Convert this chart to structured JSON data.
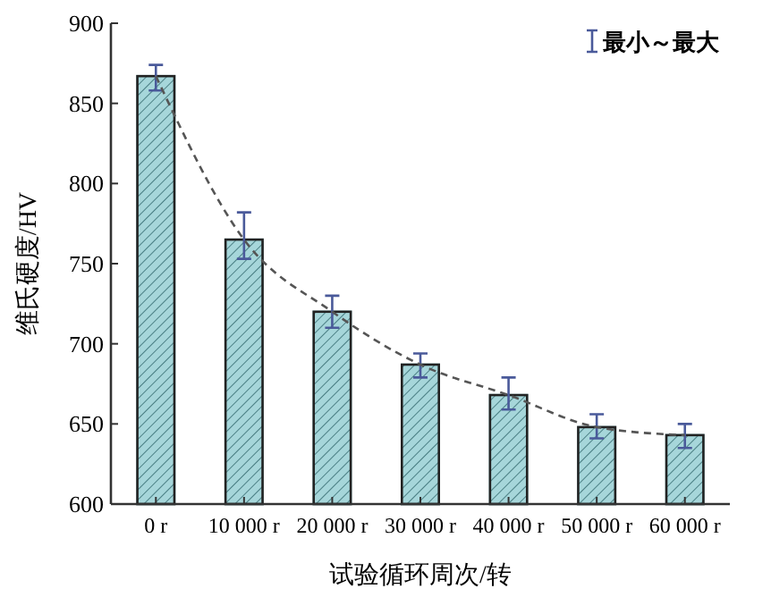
{
  "chart_data": {
    "type": "bar",
    "xlabel": "试验循环周次/转",
    "ylabel": "维氏硬度/HV",
    "legend_title": "最小～最大",
    "categories": [
      "0 r",
      "10 000 r",
      "20 000 r",
      "30 000 r",
      "40 000 r",
      "50 000 r",
      "60 000 r"
    ],
    "ylim": [
      600,
      900
    ],
    "yticks": [
      600,
      650,
      700,
      750,
      800,
      850,
      900
    ],
    "series": [
      {
        "color": "#a6d6da",
        "values": [
          867,
          765,
          720,
          687,
          668,
          648,
          643
        ],
        "errors": [
          [
            858,
            874
          ],
          [
            753,
            782
          ],
          [
            710,
            730
          ],
          [
            679,
            694
          ],
          [
            659,
            679
          ],
          [
            641,
            656
          ],
          [
            635,
            650
          ]
        ]
      },
      {
        "type": "line",
        "color": "#555555",
        "line_style": "dashed",
        "marker": "none",
        "values": [
          867,
          765,
          720,
          687,
          668,
          648,
          643
        ]
      }
    ]
  }
}
